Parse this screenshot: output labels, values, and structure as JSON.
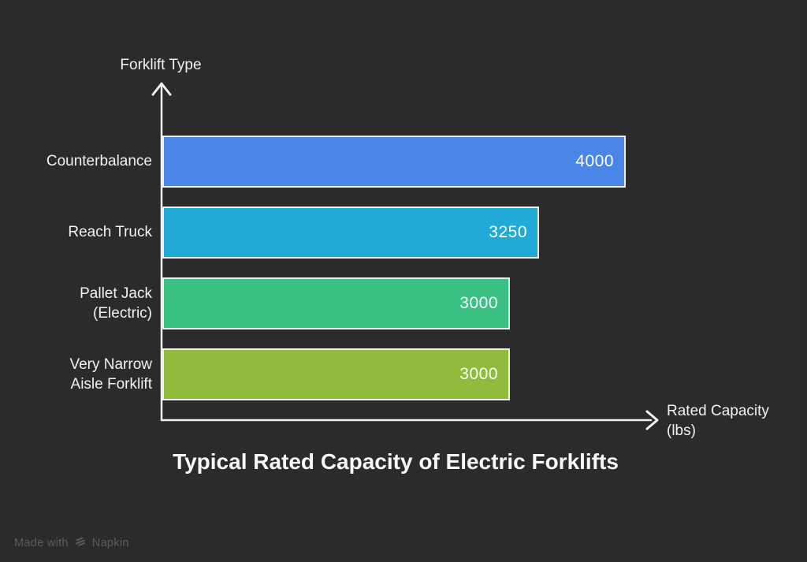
{
  "canvas": {
    "background": "#2b2b2b",
    "watermark": {
      "prefix": "Made with",
      "brand": "Napkin"
    }
  },
  "chart_data": {
    "type": "bar",
    "orientation": "horizontal",
    "title": "Typical Rated Capacity of Electric Forklifts",
    "categories": [
      "Counterbalance",
      "Reach Truck",
      "Pallet Jack\n(Electric)",
      "Very Narrow\nAisle Forklift"
    ],
    "values": [
      4000,
      3250,
      3000,
      3000
    ],
    "colors": [
      "#4a86e8",
      "#21a9d8",
      "#3cc184",
      "#91bb3d"
    ],
    "bar_border_color": "#f0f0f0",
    "xlabel": "Rated Capacity\n(lbs)",
    "ylabel": "Forklift Type",
    "xlim": [
      0,
      4000
    ],
    "grid": false,
    "legend": false,
    "axis_color": "#f2f2f2",
    "text_color": "#f5f5f5",
    "background": "#2b2b2b"
  }
}
